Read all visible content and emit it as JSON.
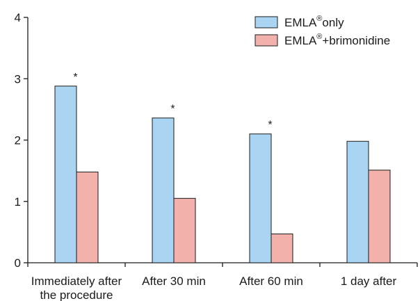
{
  "chart_data": {
    "type": "bar",
    "categories": [
      [
        "Immediately after",
        "the procedure"
      ],
      [
        "After 30 min"
      ],
      [
        "After 60 min"
      ],
      [
        "1 day after"
      ]
    ],
    "series": [
      {
        "name": "EMLA",
        "name_sup": "®",
        "name_suffix": "only",
        "color": "#a9d5f2",
        "values": [
          2.88,
          2.36,
          2.1,
          1.98
        ]
      },
      {
        "name": "EMLA",
        "name_sup": "®",
        "name_suffix": "+brimonidine",
        "color": "#f2b1aa",
        "values": [
          1.48,
          1.05,
          0.47,
          1.51
        ]
      }
    ],
    "significance_marker": "*",
    "significance_on_series_1": [
      true,
      true,
      true,
      false
    ],
    "ylim": [
      0,
      4
    ],
    "yticks": [
      0,
      1,
      2,
      3,
      4
    ],
    "xlabel": "",
    "ylabel": "",
    "legend_position": "top-right",
    "grid": false
  }
}
